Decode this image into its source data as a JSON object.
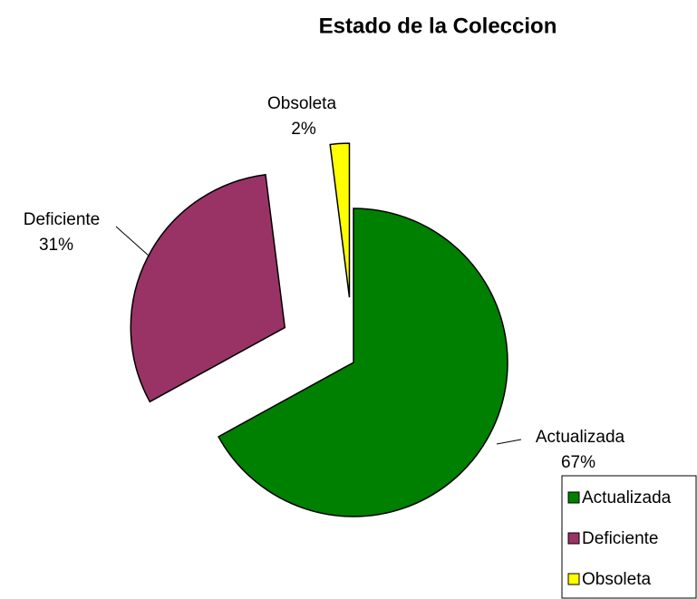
{
  "chart_data": {
    "type": "pie",
    "title": "Estado de la Coleccion",
    "categories": [
      "Actualizada",
      "Deficiente",
      "Obsoleta"
    ],
    "values": [
      67,
      31,
      2
    ],
    "value_labels": [
      "67%",
      "31%",
      "2%"
    ],
    "colors": [
      "#008000",
      "#993366",
      "#ffff00"
    ],
    "legend": "bottom-right"
  }
}
